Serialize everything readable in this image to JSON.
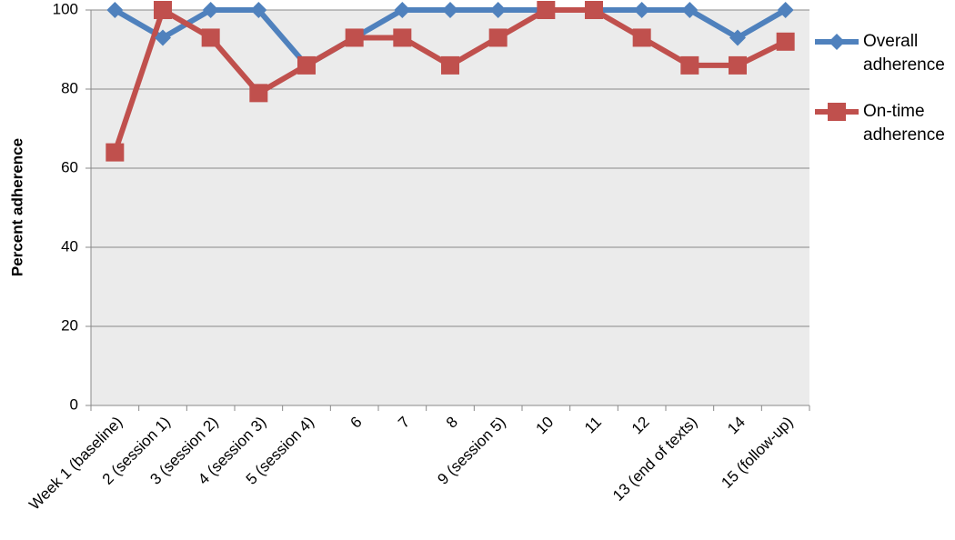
{
  "chart_data": {
    "type": "line",
    "y_label": "Percent adherence",
    "categories": [
      "Week 1 (baseline)",
      "2 (session 1)",
      "3 (session 2)",
      "4 (session 3)",
      "5 (session 4)",
      "6",
      "7",
      "8",
      "9 (session 5)",
      "10",
      "11",
      "12",
      "13 (end of texts)",
      "14",
      "15 (follow-up)"
    ],
    "series": [
      {
        "name": "Overall adherence",
        "color": "#4f81bd",
        "marker": "diamond",
        "values": [
          100,
          93,
          100,
          100,
          86,
          93,
          100,
          100,
          100,
          100,
          100,
          100,
          100,
          93,
          100
        ]
      },
      {
        "name": "On-time adherence",
        "color": "#c0504d",
        "marker": "square",
        "values": [
          64,
          100,
          93,
          79,
          86,
          93,
          93,
          86,
          93,
          100,
          100,
          93,
          86,
          86,
          92
        ]
      }
    ],
    "ylim": [
      0,
      100
    ],
    "yticks": [
      0,
      20,
      40,
      60,
      80,
      100
    ],
    "grid": true,
    "legend": "right"
  }
}
